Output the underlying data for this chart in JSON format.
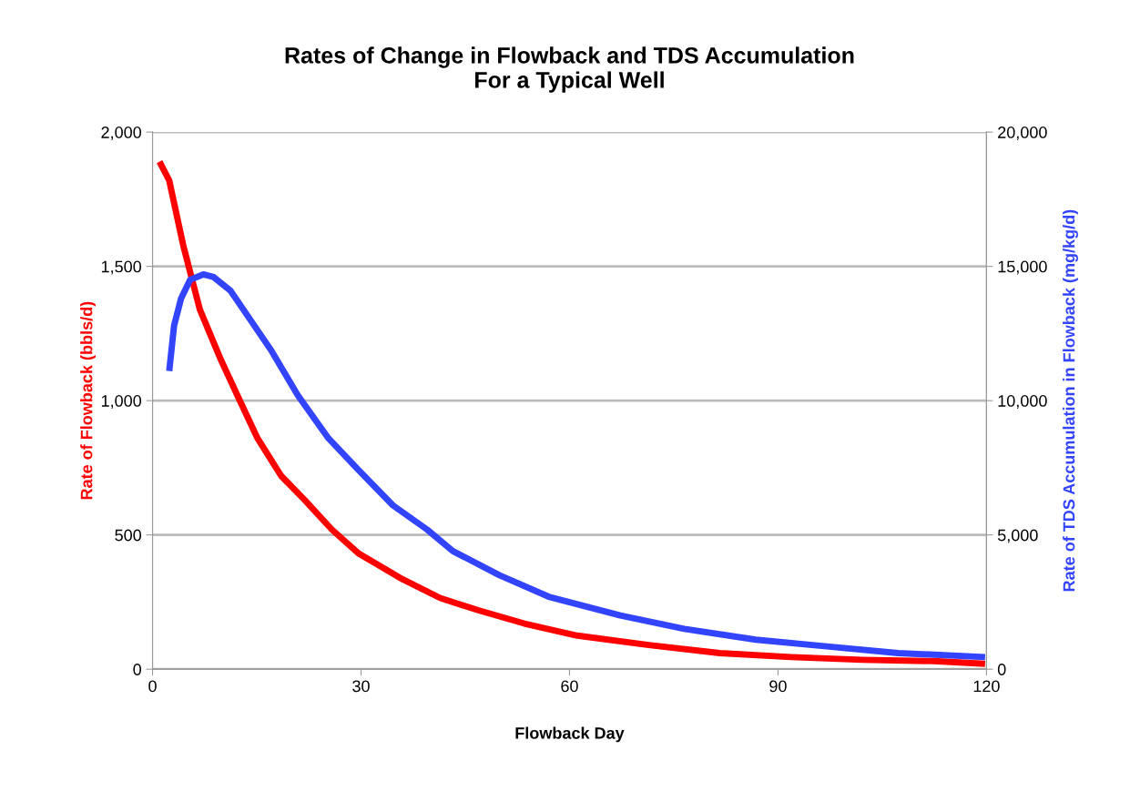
{
  "chart_data": {
    "type": "line",
    "title": "Rates of Change in Flowback and TDS Accumulation\nFor a Typical Well",
    "xlabel": "Flowback Day",
    "ylabel": "Rate of Flowback (bbls/d)",
    "y2label": "Rate of TDS Accumulation in Flowback (mg/kg/d)",
    "xlim": [
      0,
      120
    ],
    "xticks": [
      0,
      30,
      60,
      90,
      120
    ],
    "ylim": [
      0,
      2000
    ],
    "yticks": [
      0,
      {
        "value": 500,
        "label": "500"
      },
      {
        "value": 1000,
        "label": "1,000"
      },
      {
        "value": 1500,
        "label": "1,500"
      },
      {
        "value": 2000,
        "label": "2,000"
      }
    ],
    "y2lim": [
      0,
      20000
    ],
    "y2ticks": [
      0,
      {
        "value": 5000,
        "label": "5,000"
      },
      {
        "value": 10000,
        "label": "10,000"
      },
      {
        "value": 15000,
        "label": "15,000"
      },
      {
        "value": 20000,
        "label": "20,000"
      }
    ],
    "grid": "y",
    "marker": "none",
    "line_style": "solid",
    "series": [
      {
        "color": "#ff0000",
        "x": [
          1,
          2.4,
          4.4,
          6.8,
          9.7,
          12.2,
          15.1,
          18.5,
          21.9,
          25.8,
          29.7,
          35.6,
          41.4,
          46.8,
          53.5,
          61.1,
          71.4,
          81.6,
          91.9,
          102.1,
          112.4,
          119.8
        ],
        "values": [
          1890,
          1820,
          1580,
          1340,
          1160,
          1020,
          860,
          720,
          630,
          520,
          430,
          340,
          265,
          220,
          170,
          125,
          90,
          60,
          45,
          35,
          30,
          20
        ]
      },
      {
        "color": "#3344ff",
        "axis": "y2",
        "x": [
          2.4,
          3.1,
          4.1,
          5.4,
          7.3,
          8.8,
          11.2,
          14.1,
          17.0,
          20.9,
          25.3,
          29.7,
          34.6,
          39.5,
          43.2,
          49.9,
          57.0,
          67.3,
          76.5,
          86.8,
          97.0,
          107.3,
          119.8
        ],
        "values": [
          11100,
          12800,
          13800,
          14500,
          14700,
          14600,
          14100,
          13000,
          11900,
          10200,
          8600,
          7400,
          6100,
          5200,
          4400,
          3500,
          2700,
          2000,
          1500,
          1100,
          850,
          600,
          450
        ]
      }
    ]
  }
}
